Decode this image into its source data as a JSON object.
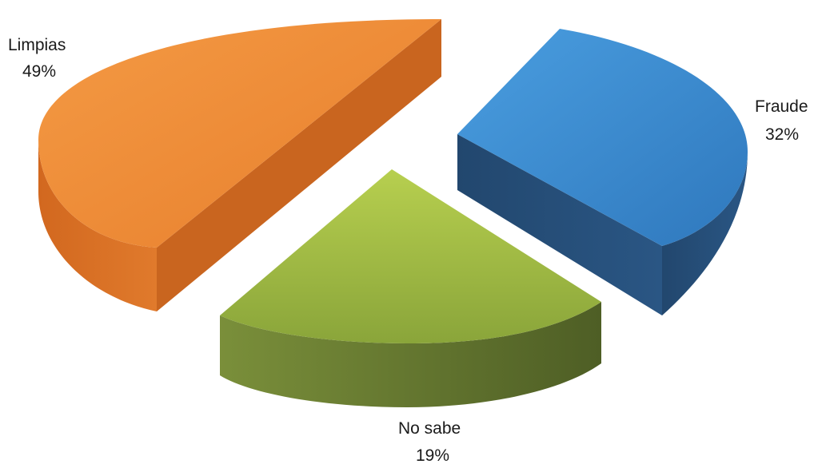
{
  "chart_data": {
    "type": "pie",
    "title": "",
    "style": "3d-exploded",
    "slices": [
      {
        "name": "Fraude",
        "value": 32,
        "label": "32%",
        "color": "#3c8dd3"
      },
      {
        "name": "No sabe",
        "value": 19,
        "label": "19%",
        "color": "#8fac3a"
      },
      {
        "name": "Limpias",
        "value": 49,
        "label": "49%",
        "color": "#ef8a30"
      }
    ]
  }
}
